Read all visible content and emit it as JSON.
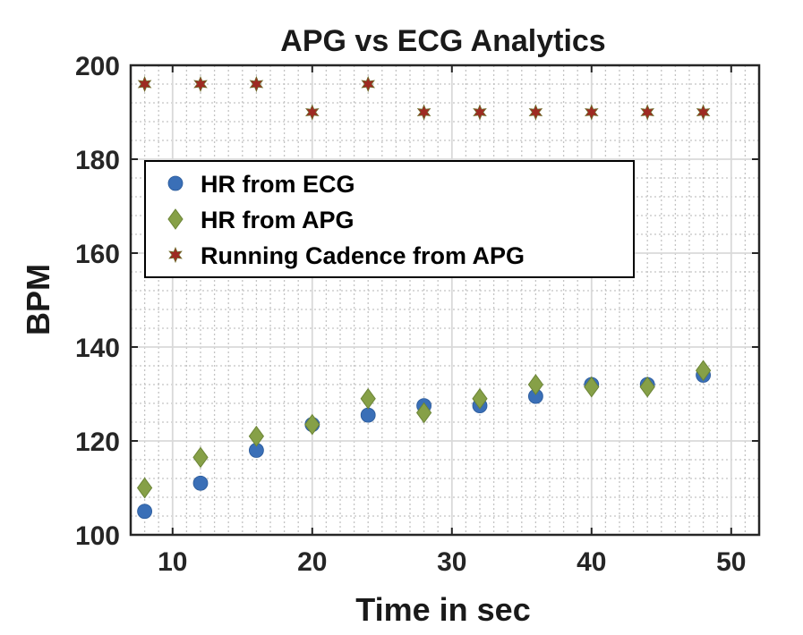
{
  "chart_data": {
    "type": "scatter",
    "title": "APG vs ECG Analytics",
    "xlabel": "Time in sec",
    "ylabel": "BPM",
    "xlim": [
      7,
      52
    ],
    "ylim": [
      100,
      200
    ],
    "xticks": [
      10,
      20,
      30,
      40,
      50
    ],
    "yticks": [
      100,
      120,
      140,
      160,
      180,
      200
    ],
    "grid": true,
    "minor_grid": true,
    "legend_position": "upper-left",
    "series": [
      {
        "name": "HR from ECG",
        "marker": "circle",
        "color": "#3a6fb7",
        "x": [
          8,
          12,
          16,
          20,
          24,
          28,
          32,
          36,
          40,
          44,
          48
        ],
        "y": [
          105,
          111,
          118,
          123.5,
          125.5,
          127.5,
          127.5,
          129.5,
          132,
          132,
          134
        ]
      },
      {
        "name": "HR from APG",
        "marker": "diamond",
        "color": "#86a047",
        "x": [
          8,
          12,
          16,
          20,
          24,
          28,
          32,
          36,
          40,
          44,
          48
        ],
        "y": [
          110,
          116.5,
          121,
          123.5,
          129,
          126,
          129,
          132,
          131.5,
          131.5,
          135
        ]
      },
      {
        "name": "Running Cadence from APG",
        "marker": "star",
        "color": "#9e2a22",
        "x": [
          8,
          12,
          16,
          20,
          24,
          28,
          32,
          36,
          40,
          44,
          48
        ],
        "y": [
          196,
          196,
          196,
          190,
          196,
          190,
          190,
          190,
          190,
          190,
          190
        ]
      }
    ]
  }
}
